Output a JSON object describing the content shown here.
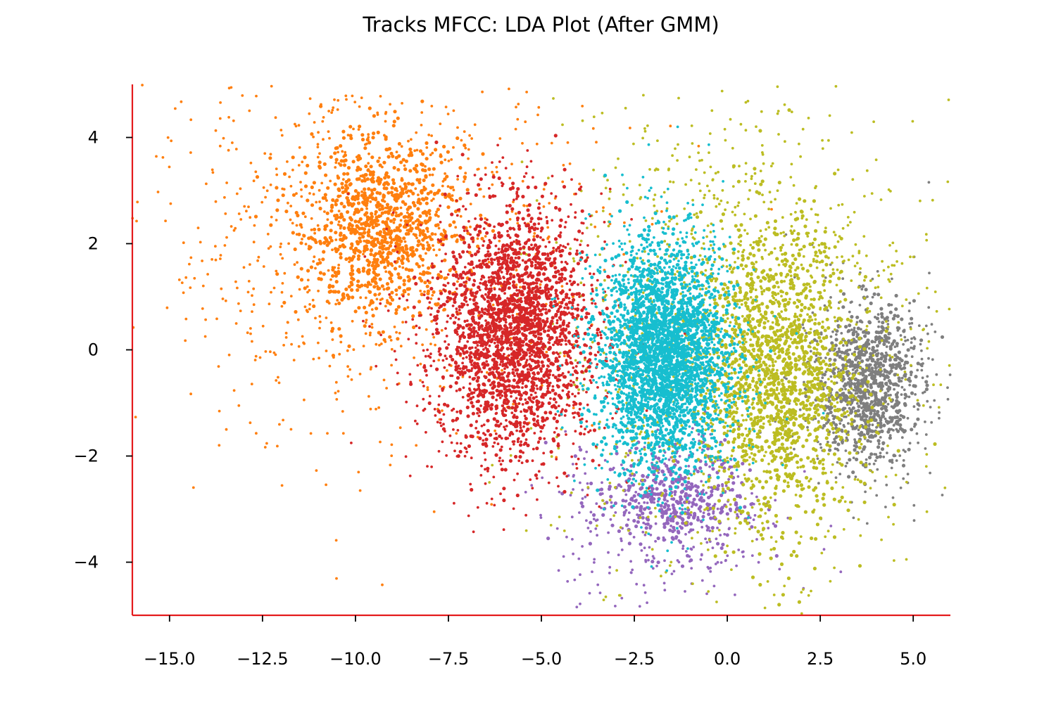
{
  "chart_data": {
    "type": "scatter",
    "title": "Tracks MFCC: LDA Plot (After GMM)",
    "xlabel": "",
    "ylabel": "",
    "xlim": [
      -16,
      6
    ],
    "ylim": [
      -5,
      5
    ],
    "xticks": [
      -15.0,
      -12.5,
      -10.0,
      -7.5,
      -5.0,
      -2.5,
      0.0,
      2.5,
      5.0
    ],
    "xtick_labels": [
      "−15.0",
      "−12.5",
      "−10.0",
      "−7.5",
      "−5.0",
      "−2.5",
      "0.0",
      "2.5",
      "5.0"
    ],
    "yticks": [
      4,
      2,
      0,
      -2,
      -4
    ],
    "ytick_labels": [
      "4",
      "2",
      "0",
      "−2",
      "−4"
    ],
    "grid": false,
    "legend": "none",
    "spine_color": "#e41a1c",
    "clusters": [
      {
        "color": "#ff7f0e",
        "center": [
          -9.5,
          2.0
        ],
        "spread": [
          3.0,
          1.9
        ],
        "count": 1800,
        "dense_core": [
          -9.3,
          2.3
        ],
        "dense_spread": [
          1.1,
          0.8
        ]
      },
      {
        "color": "#7f7f7f",
        "center": [
          3.7,
          -0.7
        ],
        "spread": [
          0.9,
          0.9
        ],
        "count": 1100,
        "dense_core": [
          3.8,
          -0.6
        ],
        "dense_spread": [
          0.6,
          0.7
        ]
      },
      {
        "color": "#9467bd",
        "center": [
          -1.5,
          -3.1
        ],
        "spread": [
          1.5,
          0.8
        ],
        "count": 700,
        "dense_core": [
          -1.5,
          -2.8
        ],
        "dense_spread": [
          1.0,
          0.5
        ]
      },
      {
        "color": "#bcbd22",
        "center": [
          0.3,
          0.3
        ],
        "spread": [
          2.4,
          2.1
        ],
        "count": 2600,
        "dense_core": [
          1.3,
          -0.5
        ],
        "dense_spread": [
          1.0,
          1.4
        ]
      },
      {
        "color": "#d62728",
        "center": [
          -5.8,
          0.2
        ],
        "spread": [
          1.3,
          1.3
        ],
        "count": 2600,
        "dense_core": [
          -5.7,
          0.4
        ],
        "dense_spread": [
          0.9,
          1.1
        ]
      },
      {
        "color": "#17becf",
        "center": [
          -1.7,
          -0.1
        ],
        "spread": [
          1.0,
          1.2
        ],
        "count": 3200,
        "dense_core": [
          -1.7,
          -0.1
        ],
        "dense_spread": [
          0.8,
          0.95
        ]
      }
    ]
  }
}
